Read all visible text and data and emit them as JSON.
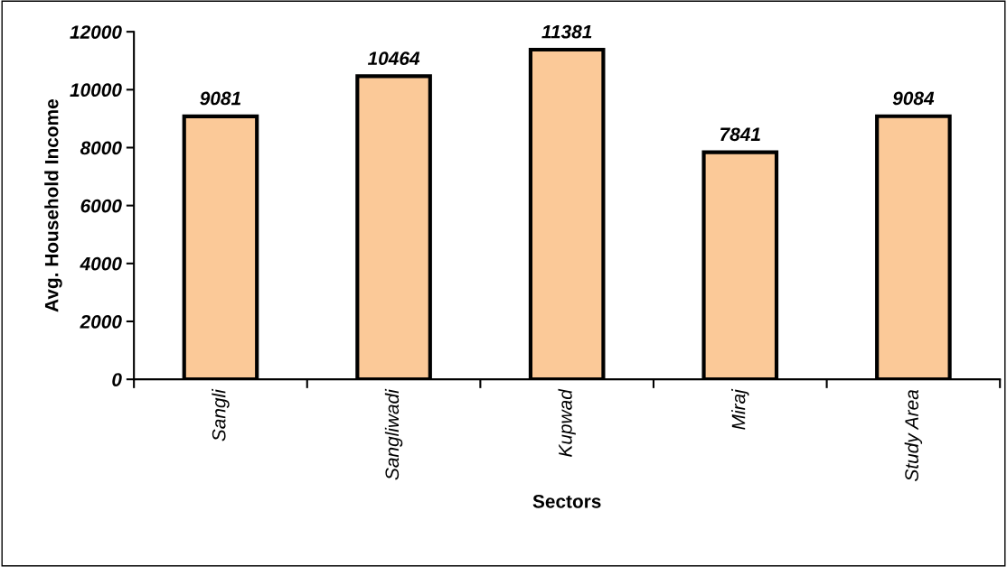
{
  "chart_data": {
    "type": "bar",
    "xlabel": "Sectors",
    "ylabel": "Avg. Household Income",
    "categories": [
      "Sangli",
      "Sangliwadi",
      "Kupwad",
      "Miraj",
      "Study Area"
    ],
    "values": [
      9081,
      10464,
      11381,
      7841,
      9084
    ],
    "color": "#fbc998",
    "ylim": [
      0,
      12000
    ],
    "yticks": [
      0,
      2000,
      4000,
      6000,
      8000,
      10000,
      12000
    ],
    "data_labels": true,
    "grid": false,
    "legend": false
  }
}
